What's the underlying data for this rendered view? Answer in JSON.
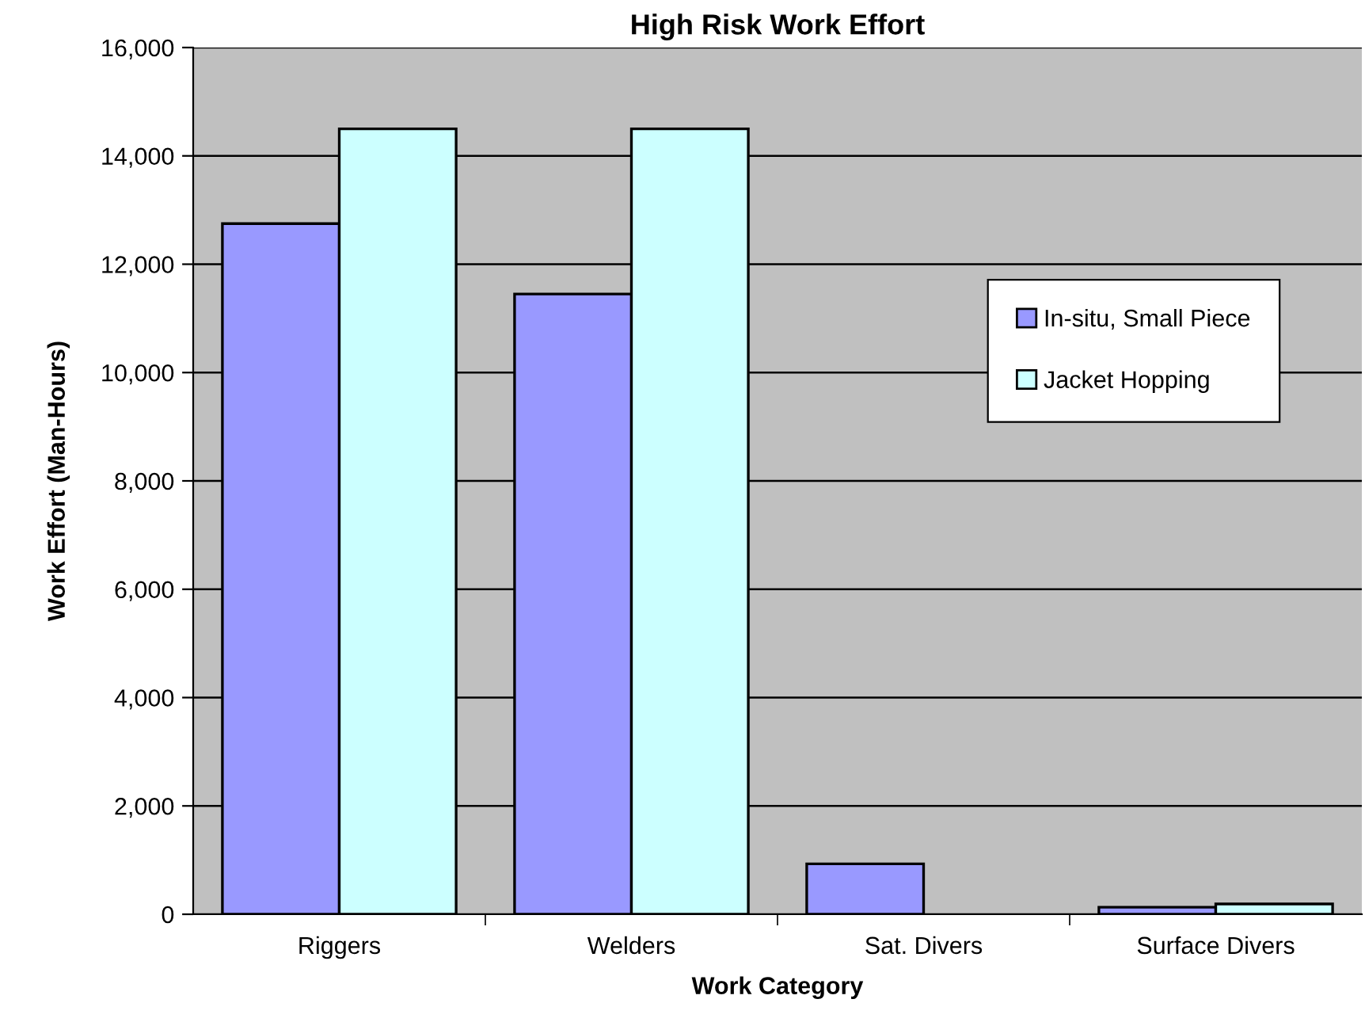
{
  "chart_data": {
    "type": "bar",
    "title": "High Risk Work Effort",
    "xlabel": "Work Category",
    "ylabel": "Work Effort (Man-Hours)",
    "categories": [
      "Riggers",
      "Welders",
      "Sat. Divers",
      "Surface Divers"
    ],
    "series": [
      {
        "name": "In-situ, Small Piece",
        "color": "#9999ff",
        "values": [
          12750,
          11450,
          930,
          130
        ]
      },
      {
        "name": "Jacket Hopping",
        "color": "#ccffff",
        "values": [
          14500,
          14500,
          null,
          190
        ]
      }
    ],
    "ylim": [
      0,
      16000
    ],
    "yticks": [
      {
        "value": 0,
        "label": "0"
      },
      {
        "value": 2000,
        "label": "2,000"
      },
      {
        "value": 4000,
        "label": "4,000"
      },
      {
        "value": 6000,
        "label": "6,000"
      },
      {
        "value": 8000,
        "label": "8,000"
      },
      {
        "value": 10000,
        "label": "10,000"
      },
      {
        "value": 12000,
        "label": "12,000"
      },
      {
        "value": 14000,
        "label": "14,000"
      },
      {
        "value": 16000,
        "label": "16,000"
      }
    ],
    "grid": "y",
    "legend": "right"
  }
}
